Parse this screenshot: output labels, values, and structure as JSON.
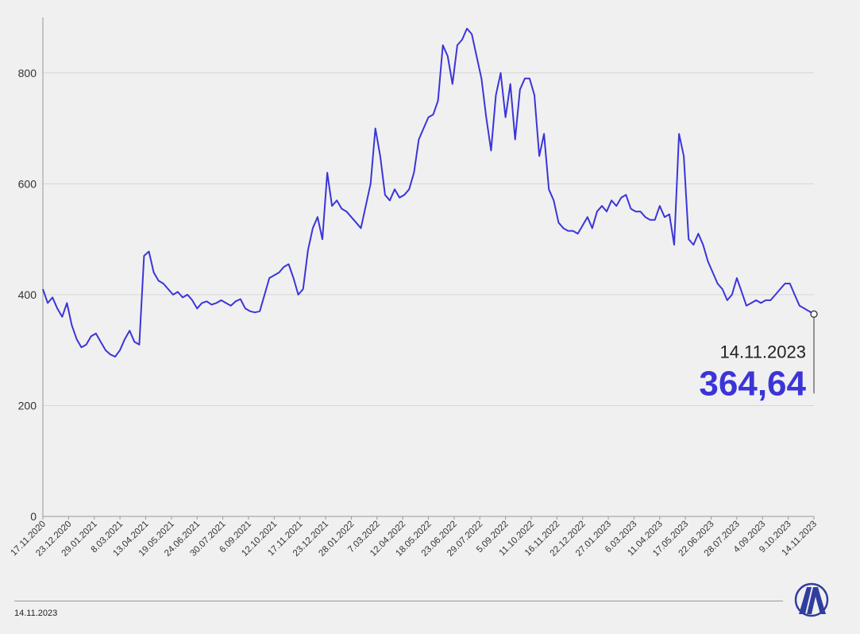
{
  "chart_data": {
    "type": "line",
    "title": "",
    "xlabel": "",
    "ylabel": "",
    "ylim": [
      0,
      900
    ],
    "yticks": [
      0,
      200,
      400,
      600,
      800
    ],
    "ytick_labels": [
      "0",
      "200",
      "400",
      "600",
      "800"
    ],
    "grid": true,
    "xtick_labels": [
      "17.11.2020",
      "23.12.2020",
      "29.01.2021",
      "8.03.2021",
      "13.04.2021",
      "19.05.2021",
      "24.06.2021",
      "30.07.2021",
      "6.09.2021",
      "12.10.2021",
      "17.11.2021",
      "23.12.2021",
      "28.01.2022",
      "7.03.2022",
      "12.04.2022",
      "18.05.2022",
      "23.06.2022",
      "29.07.2022",
      "5.09.2022",
      "11.10.2022",
      "16.11.2022",
      "22.12.2022",
      "27.01.2023",
      "6.03.2023",
      "11.04.2023",
      "17.05.2023",
      "22.06.2023",
      "28.07.2023",
      "4.09.2023",
      "9.10.2023",
      "14.11.2023"
    ],
    "series": [
      {
        "color": "#3b35d8",
        "values": [
          410,
          385,
          395,
          375,
          360,
          385,
          345,
          320,
          305,
          310,
          325,
          330,
          315,
          300,
          292,
          288,
          300,
          320,
          335,
          315,
          310,
          470,
          478,
          440,
          425,
          420,
          410,
          400,
          405,
          395,
          400,
          390,
          375,
          385,
          388,
          382,
          385,
          390,
          385,
          380,
          388,
          392,
          375,
          370,
          368,
          370,
          400,
          430,
          435,
          440,
          450,
          455,
          430,
          400,
          410,
          480,
          520,
          540,
          500,
          620,
          560,
          570,
          555,
          550,
          540,
          530,
          520,
          560,
          600,
          700,
          650,
          580,
          570,
          590,
          575,
          580,
          590,
          620,
          680,
          700,
          720,
          725,
          750,
          850,
          830,
          780,
          850,
          860,
          880,
          870,
          830,
          790,
          720,
          660,
          760,
          800,
          720,
          780,
          680,
          770,
          790,
          790,
          760,
          650,
          690,
          590,
          570,
          530,
          520,
          515,
          515,
          510,
          525,
          540,
          520,
          550,
          560,
          550,
          570,
          560,
          575,
          580,
          555,
          550,
          550,
          540,
          535,
          535,
          560,
          540,
          545,
          490,
          690,
          650,
          500,
          490,
          510,
          490,
          460,
          440,
          420,
          410,
          390,
          400,
          430,
          405,
          380,
          385,
          390,
          385,
          390,
          390,
          400,
          410,
          420,
          420,
          400,
          380,
          375,
          370,
          365
        ]
      }
    ],
    "annotation": {
      "date": "14.11.2023",
      "value": "364,64"
    }
  },
  "footer": {
    "date": "14.11.2023",
    "logo": "aa-logo"
  }
}
